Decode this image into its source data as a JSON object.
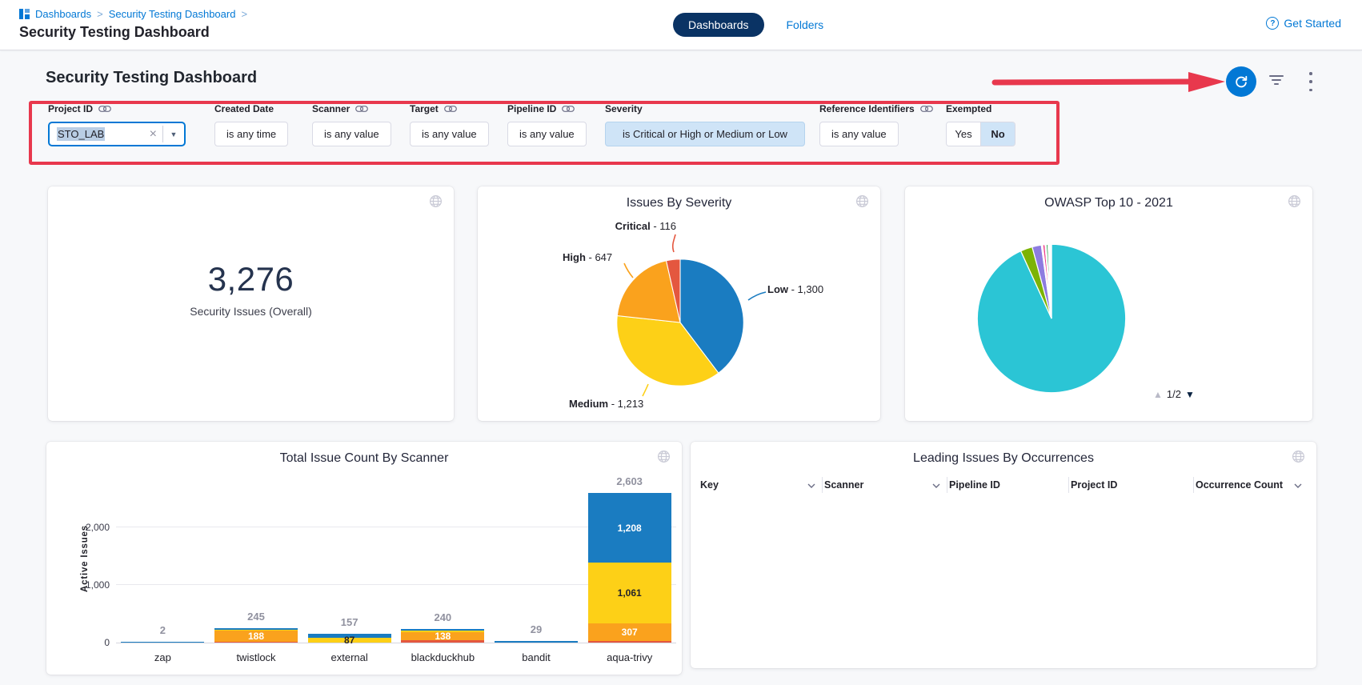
{
  "colors": {
    "accent": "#0278d5",
    "navy": "#0a3364",
    "annot": "#e8384d"
  },
  "header": {
    "breadcrumb": {
      "items": [
        "Dashboards",
        "Security Testing Dashboard"
      ],
      "separator": ">"
    },
    "page_title": "Security Testing Dashboard",
    "tabs": [
      {
        "label": "Dashboards",
        "active": true
      },
      {
        "label": "Folders",
        "active": false
      }
    ],
    "get_started": "Get Started",
    "help_icon": "question-circle"
  },
  "toolbar": {
    "heading": "Security Testing Dashboard"
  },
  "filters": [
    {
      "label": "Project ID",
      "linked": true,
      "type": "input",
      "value": "STO_LAB"
    },
    {
      "label": "Created Date",
      "linked": false,
      "type": "button",
      "value": "is any time"
    },
    {
      "label": "Scanner",
      "linked": true,
      "type": "button",
      "value": "is any value"
    },
    {
      "label": "Target",
      "linked": true,
      "type": "button",
      "value": "is any value"
    },
    {
      "label": "Pipeline ID",
      "linked": true,
      "type": "button",
      "value": "is any value"
    },
    {
      "label": "Severity",
      "linked": false,
      "type": "button-selected",
      "value": "is Critical or High or Medium or Low"
    },
    {
      "label": "Reference Identifiers",
      "linked": true,
      "type": "button",
      "value": "is any value"
    },
    {
      "label": "Exempted",
      "linked": false,
      "type": "toggle",
      "options": [
        "Yes",
        "No"
      ],
      "selected": "No"
    }
  ],
  "cards": {
    "total": {
      "value": "3,276",
      "label": "Security Issues (Overall)"
    }
  },
  "chart_data": [
    {
      "id": "issues-by-severity",
      "type": "pie",
      "title": "Issues By Severity",
      "legend_position": "labels-with-leader-lines",
      "slices": [
        {
          "name": "Low",
          "value": 1300,
          "display": "1,300",
          "color": "#1a7cc1"
        },
        {
          "name": "Medium",
          "value": 1213,
          "display": "1,213",
          "color": "#fdd017"
        },
        {
          "name": "High",
          "value": 647,
          "display": "647",
          "color": "#faa21d"
        },
        {
          "name": "Critical",
          "value": 116,
          "display": "116",
          "color": "#e4573f"
        }
      ]
    },
    {
      "id": "owasp-top-10-2021",
      "type": "pie",
      "title": "OWASP Top 10 - 2021",
      "pagination": "1/2",
      "values_are": "percent_estimate",
      "slices": [
        {
          "value": 93.2,
          "color": "#2bc5d5"
        },
        {
          "value": 2.6,
          "color": "#7cb305"
        },
        {
          "value": 2.0,
          "color": "#8d7ce0"
        },
        {
          "value": 0.3,
          "color": "#ffffff"
        },
        {
          "value": 0.5,
          "color": "#ee3e8b"
        },
        {
          "value": 0.25,
          "color": "#ffffff"
        },
        {
          "value": 0.4,
          "color": "#2fa84f"
        },
        {
          "value": 0.75,
          "color": "#ffffff"
        }
      ]
    },
    {
      "id": "total-issue-count-by-scanner",
      "type": "stacked-bar",
      "title": "Total Issue Count By Scanner",
      "ylabel": "Active Issues",
      "yticks": [
        0,
        1000,
        2000
      ],
      "yticks_display": [
        "0",
        "1,000",
        "2,000"
      ],
      "ylim": [
        0,
        2900
      ],
      "grid": true,
      "palette": {
        "blue": "#1a7cc1",
        "yellow": "#fdd017",
        "orange": "#faa21d",
        "red": "#e4573f"
      },
      "bars": [
        {
          "category": "zap",
          "total": "2",
          "segments": [
            {
              "color": "blue",
              "value": 2
            }
          ]
        },
        {
          "category": "twistlock",
          "total": "245",
          "segments": [
            {
              "color": "red",
              "value": 10
            },
            {
              "color": "orange",
              "value": 188,
              "label": "188",
              "label_color": "#ffffff"
            },
            {
              "color": "yellow",
              "value": 14
            },
            {
              "color": "blue",
              "value": 33
            }
          ]
        },
        {
          "category": "external",
          "total": "157",
          "segments": [
            {
              "color": "yellow",
              "value": 87,
              "label": "87",
              "label_color": "#22222a"
            },
            {
              "color": "blue",
              "value": 70
            }
          ]
        },
        {
          "category": "blackduckhub",
          "total": "240",
          "segments": [
            {
              "color": "red",
              "value": 45
            },
            {
              "color": "orange",
              "value": 138,
              "label": "138",
              "label_color": "#ffffff"
            },
            {
              "color": "yellow",
              "value": 28
            },
            {
              "color": "blue",
              "value": 29
            }
          ]
        },
        {
          "category": "bandit",
          "total": "29",
          "segments": [
            {
              "color": "blue",
              "value": 29
            }
          ]
        },
        {
          "category": "aqua-trivy",
          "total": "2,603",
          "segments": [
            {
              "color": "red",
              "value": 27
            },
            {
              "color": "orange",
              "value": 307,
              "label": "307",
              "label_color": "#ffffff"
            },
            {
              "color": "yellow",
              "value": 1061,
              "label": "1,061",
              "label_color": "#22222a"
            },
            {
              "color": "blue",
              "value": 1208,
              "label": "1,208",
              "label_color": "#ffffff"
            }
          ]
        }
      ]
    },
    {
      "id": "leading-issues-by-occurrences",
      "type": "table",
      "title": "Leading Issues By Occurrences",
      "columns": [
        "Key",
        "Scanner",
        "Pipeline ID",
        "Project ID",
        "Occurrence Count"
      ],
      "rows": []
    }
  ]
}
